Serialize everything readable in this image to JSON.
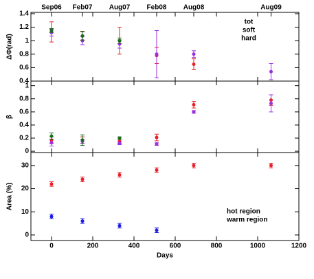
{
  "chart_data": [
    {
      "type": "scatter",
      "ylabel": "ΔΦ(rad)",
      "top_ticks": [
        {
          "value": 0,
          "label": "Sep06"
        },
        {
          "value": 150,
          "label": "Feb07"
        },
        {
          "value": 330,
          "label": "Aug07"
        },
        {
          "value": 510,
          "label": "Feb08"
        },
        {
          "value": 690,
          "label": "Aug08"
        },
        {
          "value": 1065,
          "label": "Aug09"
        }
      ],
      "x": [
        0,
        150,
        330,
        510,
        690,
        1065
      ],
      "xlim": [
        -100,
        1200
      ],
      "ylim": [
        0.4,
        1.42
      ],
      "yticks": [
        0.4,
        0.6,
        0.8,
        1.0,
        1.2,
        1.4
      ],
      "legend": "upper right",
      "series": [
        {
          "name": "tot",
          "color": "#e8202a",
          "values": [
            1.13,
            1.07,
            1.0,
            0.78,
            0.65,
            null
          ],
          "errors": [
            0.15,
            0.06,
            0.2,
            0.12,
            0.08,
            null
          ]
        },
        {
          "name": "soft",
          "color": "#9a2ee0",
          "values": [
            1.12,
            1.0,
            0.95,
            0.8,
            0.8,
            0.54
          ],
          "errors": [
            0.05,
            0.06,
            0.06,
            0.35,
            0.05,
            0.12
          ]
        },
        {
          "name": "hard",
          "color": "#1a6e1a",
          "values": [
            1.15,
            1.07,
            1.0,
            null,
            null,
            null
          ],
          "errors": [
            0.03,
            0.07,
            0.04,
            null,
            null,
            null
          ]
        }
      ]
    },
    {
      "type": "scatter",
      "ylabel": "β",
      "x": [
        0,
        150,
        330,
        510,
        690,
        1065
      ],
      "xlim": [
        -100,
        1200
      ],
      "ylim": [
        -0.02,
        1.07
      ],
      "yticks": [
        0.0,
        0.2,
        0.4,
        0.6,
        0.8,
        1.0
      ],
      "series": [
        {
          "name": "tot",
          "color": "#e8202a",
          "values": [
            0.17,
            0.17,
            0.15,
            0.21,
            0.71,
            0.78
          ],
          "errors": [
            0.05,
            0.05,
            0.03,
            0.05,
            0.05,
            0.08
          ]
        },
        {
          "name": "soft",
          "color": "#9a2ee0",
          "values": [
            0.13,
            0.15,
            0.12,
            0.11,
            0.6,
            0.73
          ],
          "errors": [
            0.05,
            0.03,
            0.02,
            0.02,
            0.02,
            0.13
          ]
        },
        {
          "name": "hard",
          "color": "#1a6e1a",
          "values": [
            0.23,
            0.17,
            0.2,
            null,
            null,
            null
          ],
          "errors": [
            0.05,
            0.08,
            0.02,
            null,
            null,
            null
          ]
        }
      ]
    },
    {
      "type": "scatter",
      "ylabel": "Area (%)",
      "xlabel": "Days",
      "x": [
        0,
        150,
        330,
        510,
        690,
        1065
      ],
      "xlim": [
        -100,
        1200
      ],
      "ylim": [
        -2.4,
        35.6
      ],
      "xticks": [
        0,
        200,
        400,
        600,
        800,
        1000,
        1200
      ],
      "yticks": [
        0,
        10,
        20,
        30
      ],
      "legend": "lower right",
      "series": [
        {
          "name": "hot region",
          "color": "#1a1ae6",
          "values": [
            8,
            6,
            4,
            2,
            null,
            null
          ],
          "errors": [
            1,
            1,
            1,
            1,
            null,
            null
          ]
        },
        {
          "name": "warm region",
          "color": "#e8202a",
          "values": [
            22,
            24,
            26,
            28,
            30,
            30
          ],
          "errors": [
            1,
            1,
            1,
            1,
            1,
            1
          ]
        }
      ]
    }
  ]
}
